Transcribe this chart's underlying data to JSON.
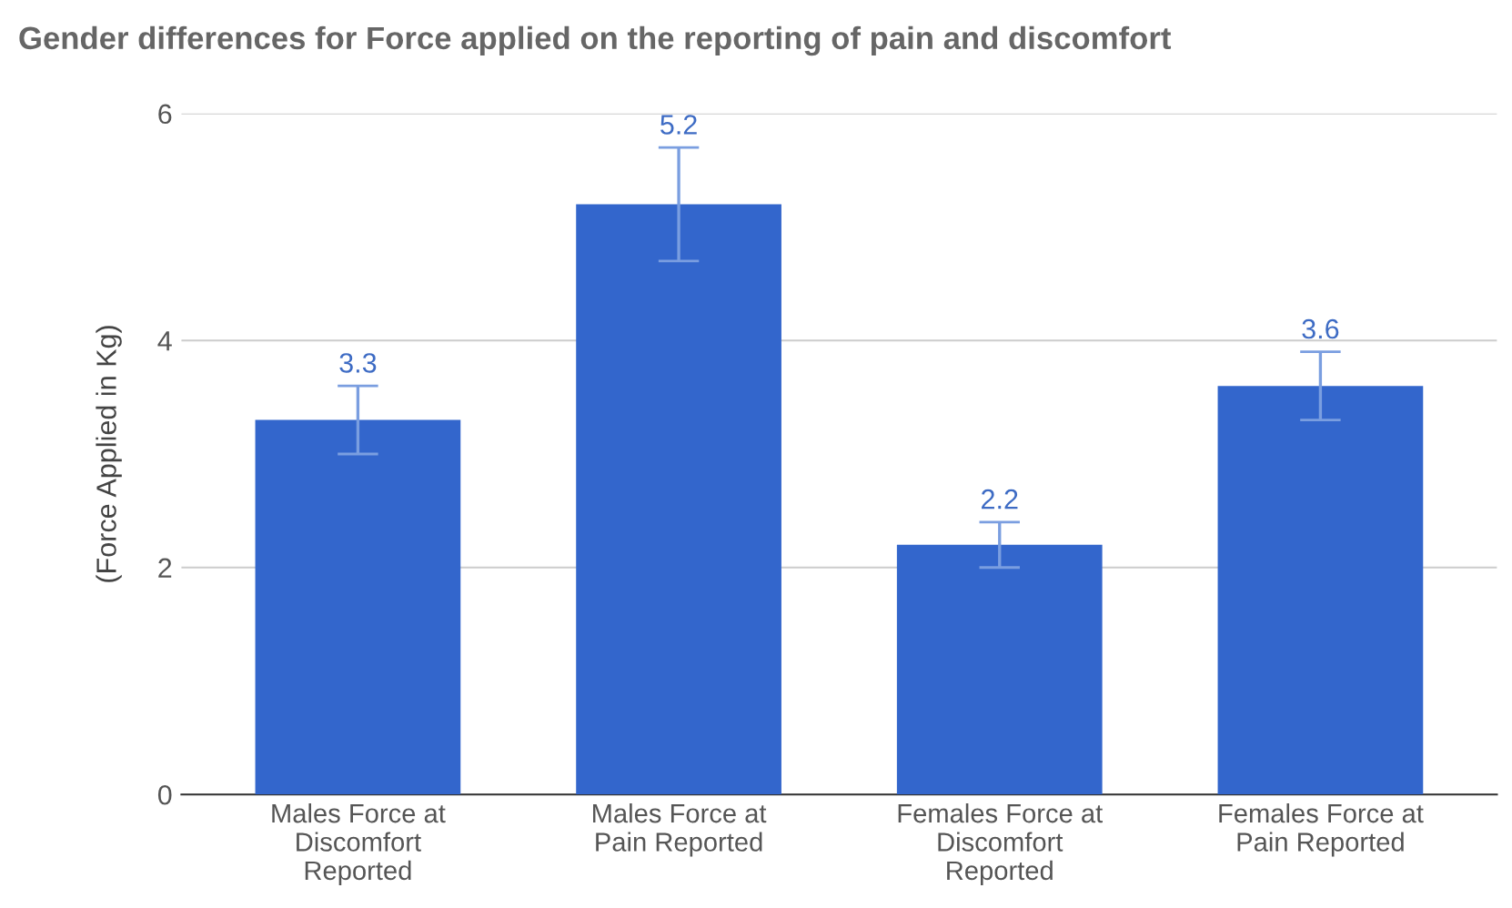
{
  "chart_data": {
    "type": "bar",
    "title": "Gender differences for Force applied on the reporting of pain and discomfort",
    "ylabel": "(Force Applied in Kg)",
    "categories": [
      "Males Force at\nDiscomfort\nReported",
      "Males Force at\nPain Reported",
      "Females Force at\nDiscomfort\nReported",
      "Females Force at\nPain Reported"
    ],
    "values": [
      3.3,
      5.2,
      2.2,
      3.6
    ],
    "errors": [
      0.3,
      0.5,
      0.2,
      0.3
    ],
    "color": "#3366cc",
    "data_labels": true,
    "ylim": [
      0,
      6
    ],
    "yticks": [
      0,
      2,
      4,
      6
    ],
    "grid": "y",
    "legend": false
  }
}
